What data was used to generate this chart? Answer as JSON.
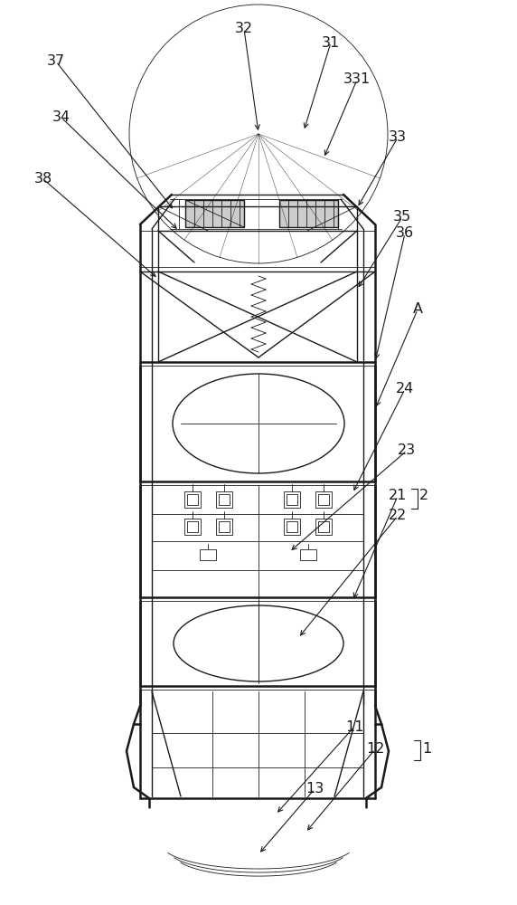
{
  "bg_color": "#ffffff",
  "lc": "#1a1a1a",
  "lw_thin": 0.6,
  "lw_med": 1.0,
  "lw_thick": 1.8,
  "lw_xthick": 2.5
}
